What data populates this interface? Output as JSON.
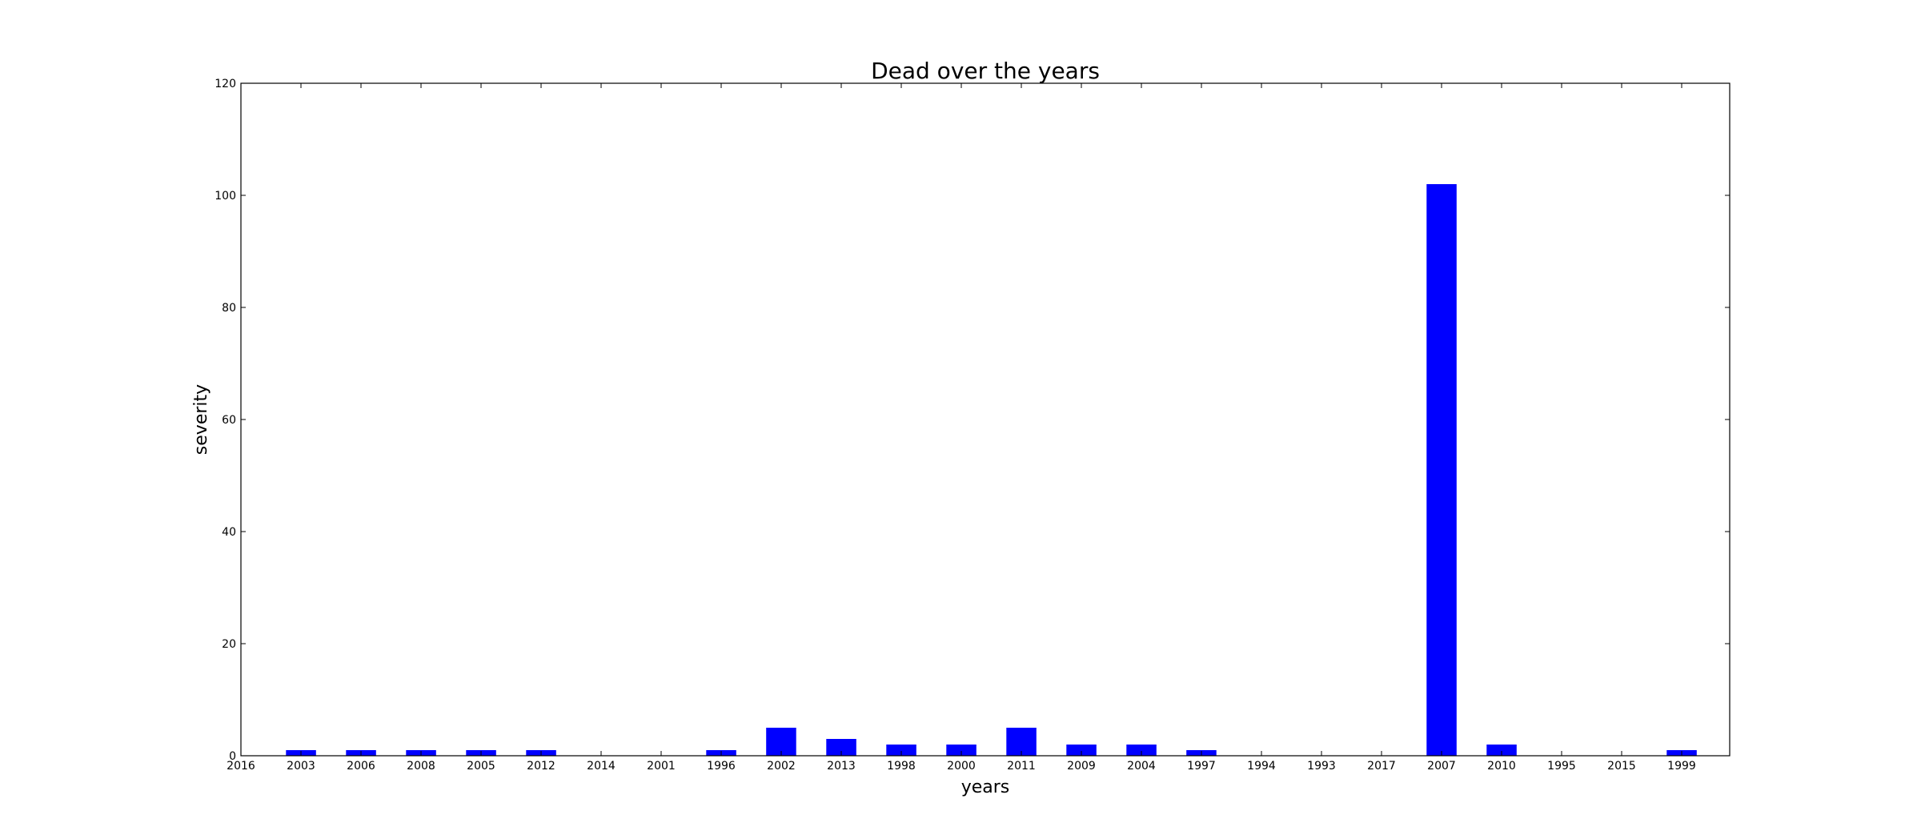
{
  "chart_data": {
    "type": "bar",
    "title": "Dead over the years",
    "xlabel": "years",
    "ylabel": "severity",
    "categories": [
      "2016",
      "2003",
      "2006",
      "2008",
      "2005",
      "2012",
      "2014",
      "2001",
      "1996",
      "2002",
      "2013",
      "1998",
      "2000",
      "2011",
      "2009",
      "2004",
      "1997",
      "1994",
      "1993",
      "2017",
      "2007",
      "2010",
      "1995",
      "2015",
      "1999"
    ],
    "values": [
      0,
      1,
      1,
      1,
      1,
      1,
      0,
      0,
      1,
      5,
      3,
      2,
      2,
      5,
      2,
      2,
      1,
      0,
      0,
      0,
      102,
      2,
      0,
      0,
      1
    ],
    "ylim": [
      0,
      120
    ],
    "yticks": [
      0,
      20,
      40,
      60,
      80,
      100,
      120
    ],
    "bar_color": "#0000ff",
    "grid": false,
    "legend": "none"
  }
}
